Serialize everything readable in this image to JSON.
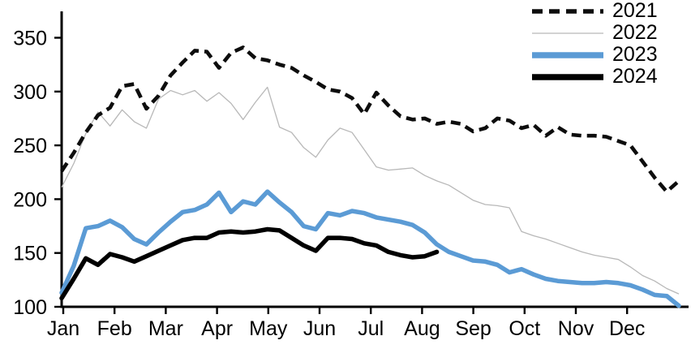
{
  "chart_data": {
    "type": "line",
    "title": "",
    "xlabel": "",
    "ylabel": "",
    "grid": false,
    "legend_position": "top-right",
    "axis_color": "#000000",
    "ylim": [
      100,
      350
    ],
    "y_ticks": [
      100,
      150,
      200,
      250,
      300,
      350
    ],
    "y_tick_labels": [
      "100",
      "150",
      "200",
      "250",
      "300",
      "350"
    ],
    "x_tick_labels": [
      "Jan",
      "Feb",
      "Mar",
      "Apr",
      "May",
      "Jun",
      "Jul",
      "Aug",
      "Sep",
      "Oct",
      "Nov",
      "Dec"
    ],
    "x_unit": "weekly points, Jan through Dec",
    "series": [
      {
        "name": "2021",
        "color": "#0d0d0d",
        "line_style": "dashed",
        "values": [
          226,
          243,
          262,
          278,
          285,
          305,
          307,
          284,
          296,
          315,
          327,
          338,
          337,
          322,
          336,
          341,
          331,
          329,
          325,
          322,
          315,
          309,
          302,
          300,
          294,
          279,
          299,
          287,
          277,
          274,
          275,
          270,
          272,
          270,
          263,
          266,
          275,
          273,
          266,
          269,
          259,
          267,
          260,
          259,
          259,
          258,
          254,
          250,
          235,
          220,
          207,
          217
        ]
      },
      {
        "name": "2022",
        "color": "#b8b8b8",
        "line_style": "thin",
        "values": [
          211,
          233,
          261,
          281,
          268,
          283,
          272,
          266,
          293,
          301,
          297,
          301,
          291,
          299,
          289,
          274,
          290,
          304,
          267,
          262,
          248,
          239,
          255,
          266,
          262,
          246,
          230,
          227,
          228,
          229,
          222,
          217,
          213,
          206,
          199,
          195,
          194,
          192,
          170,
          166,
          163,
          159,
          155,
          151,
          148,
          146,
          144,
          137,
          129,
          124,
          117,
          112
        ]
      },
      {
        "name": "2023",
        "color": "#5b9bd5",
        "line_style": "thick",
        "values": [
          113,
          138,
          173,
          175,
          180,
          174,
          163,
          158,
          169,
          179,
          188,
          190,
          195,
          206,
          188,
          198,
          195,
          207,
          197,
          188,
          175,
          172,
          187,
          185,
          189,
          187,
          183,
          181,
          179,
          176,
          169,
          158,
          151,
          147,
          143,
          142,
          139,
          132,
          135,
          130,
          126,
          124,
          123,
          122,
          122,
          123,
          122,
          120,
          116,
          111,
          110,
          101
        ]
      },
      {
        "name": "2024",
        "color": "#000000",
        "line_style": "thick",
        "values": [
          108,
          126,
          145,
          139,
          149,
          146,
          142,
          147,
          152,
          157,
          162,
          164,
          164,
          169,
          170,
          169,
          170,
          172,
          171,
          164,
          157,
          152,
          164,
          164,
          163,
          159,
          157,
          151,
          148,
          146,
          147,
          151
        ]
      }
    ]
  }
}
